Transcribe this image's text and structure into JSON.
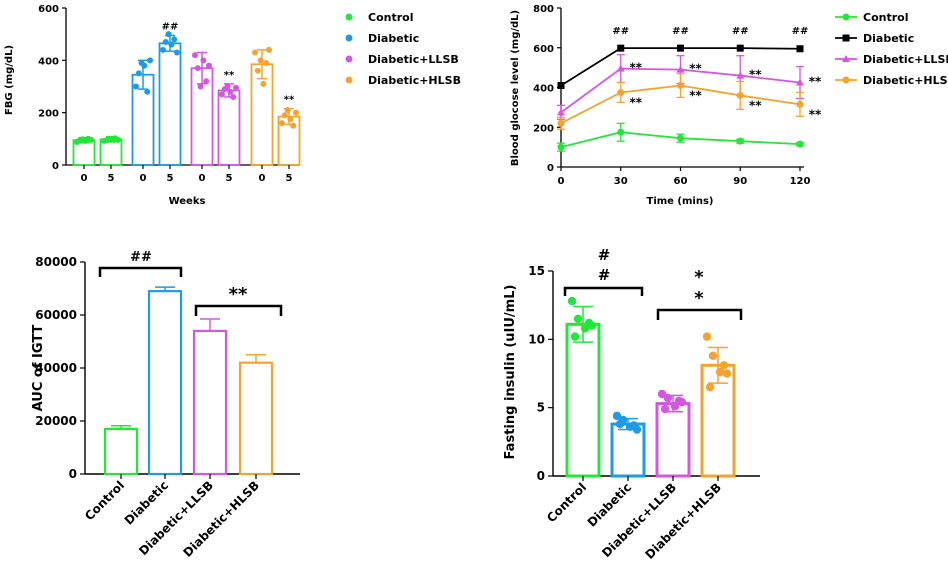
{
  "colors": {
    "Control": "#22e639",
    "Diabetic": "#1e9ae6",
    "Diabetic+LLSB": "#d357e0",
    "Diabetic+HLSB": "#f5a330",
    "Diabetic_line": "#000000"
  },
  "chart_data": [
    {
      "id": "fbg",
      "type": "bar",
      "ylabel": "FBG (mg/dL)",
      "xlabel": "Weeks",
      "ylim": [
        0,
        600
      ],
      "yticks": [
        "0",
        "200",
        "400",
        "600"
      ],
      "groups": [
        {
          "name": "Control",
          "bars": [
            {
              "week": "0",
              "mean": 95,
              "sd": 10,
              "points": [
                88,
                95,
                98,
                92,
                100,
                96
              ]
            },
            {
              "week": "5",
              "mean": 98,
              "sd": 10,
              "points": [
                92,
                95,
                100,
                98,
                102,
                96
              ]
            }
          ]
        },
        {
          "name": "Diabetic",
          "bars": [
            {
              "week": "0",
              "mean": 345,
              "sd": 55,
              "points": [
                300,
                350,
                390,
                380,
                280,
                400
              ]
            },
            {
              "week": "5",
              "mean": 465,
              "sd": 30,
              "points": [
                440,
                470,
                500,
                460,
                480,
                430
              ]
            }
          ],
          "annotation": "##"
        },
        {
          "name": "Diabetic+LLSB",
          "bars": [
            {
              "week": "0",
              "mean": 370,
              "sd": 60,
              "points": [
                420,
                370,
                300,
                400,
                320,
                380
              ]
            },
            {
              "week": "5",
              "mean": 285,
              "sd": 25,
              "points": [
                270,
                290,
                300,
                280,
                260,
                295
              ]
            }
          ],
          "annotation": "**"
        },
        {
          "name": "Diabetic+HLSB",
          "bars": [
            {
              "week": "0",
              "mean": 385,
              "sd": 55,
              "points": [
                430,
                360,
                400,
                310,
                390,
                440
              ]
            },
            {
              "week": "5",
              "mean": 185,
              "sd": 30,
              "points": [
                160,
                190,
                210,
                175,
                150,
                200
              ]
            }
          ],
          "annotation": "**"
        }
      ]
    },
    {
      "id": "ogtt",
      "type": "line",
      "ylabel": "Blood glocose level (mg/dL)",
      "xlabel": "Time (mins)",
      "x": [
        0,
        30,
        60,
        90,
        120
      ],
      "ylim": [
        0,
        800
      ],
      "yticks": [
        "0",
        "200",
        "400",
        "600",
        "800"
      ],
      "xticks": [
        "0",
        "30",
        "60",
        "90",
        "120"
      ],
      "series": [
        {
          "name": "Control",
          "values": [
            100,
            175,
            145,
            130,
            115
          ],
          "sd": [
            20,
            45,
            20,
            10,
            8
          ]
        },
        {
          "name": "Diabetic",
          "values": [
            410,
            598,
            598,
            598,
            595
          ],
          "sd": [
            0,
            0,
            0,
            0,
            0
          ]
        },
        {
          "name": "Diabetic+LLSB",
          "values": [
            275,
            495,
            490,
            460,
            425
          ],
          "sd": [
            35,
            70,
            70,
            100,
            80
          ]
        },
        {
          "name": "Diabetic+HLSB",
          "values": [
            220,
            375,
            410,
            360,
            315
          ],
          "sd": [
            30,
            50,
            60,
            70,
            60
          ]
        }
      ],
      "hash_annotations": [
        "##",
        "##",
        "##",
        "##"
      ],
      "llsb_annotations": [
        "**",
        "**",
        "**",
        "**"
      ],
      "hlsb_annotations": [
        "**",
        "**",
        "**",
        "**"
      ]
    },
    {
      "id": "auc",
      "type": "bar",
      "ylabel": "AUC of IGTT",
      "ylim": [
        0,
        80000
      ],
      "yticks": [
        "0",
        "20000",
        "40000",
        "60000",
        "80000"
      ],
      "categories": [
        "Control",
        "Diabetic",
        "Diabetic+LLSB",
        "Diabetic+HLSB"
      ],
      "values": [
        17000,
        69000,
        54000,
        42000
      ],
      "sd": [
        1200,
        1500,
        4500,
        3000
      ],
      "annotations": [
        "##",
        "**"
      ]
    },
    {
      "id": "insulin",
      "type": "bar",
      "ylabel": "Fasting insulin (uIU/mL)",
      "ylim": [
        0,
        15
      ],
      "yticks": [
        "0",
        "5",
        "10",
        "15"
      ],
      "categories": [
        "Control",
        "Diabetic",
        "Diabetic+LLSB",
        "Diabetic+HLSB"
      ],
      "values": [
        11.1,
        3.8,
        5.3,
        8.1
      ],
      "sd": [
        1.3,
        0.4,
        0.6,
        1.3
      ],
      "points": [
        [
          12.8,
          11.5,
          10.8,
          11.0,
          10.2,
          11.2
        ],
        [
          4.4,
          4.1,
          3.6,
          3.4,
          3.8,
          3.7
        ],
        [
          6.0,
          5.7,
          5.1,
          5.4,
          4.9,
          5.5
        ],
        [
          10.2,
          8.8,
          7.6,
          7.5,
          6.5,
          8.1
        ]
      ],
      "annotations": [
        "#",
        "#",
        "*",
        "*"
      ]
    }
  ]
}
